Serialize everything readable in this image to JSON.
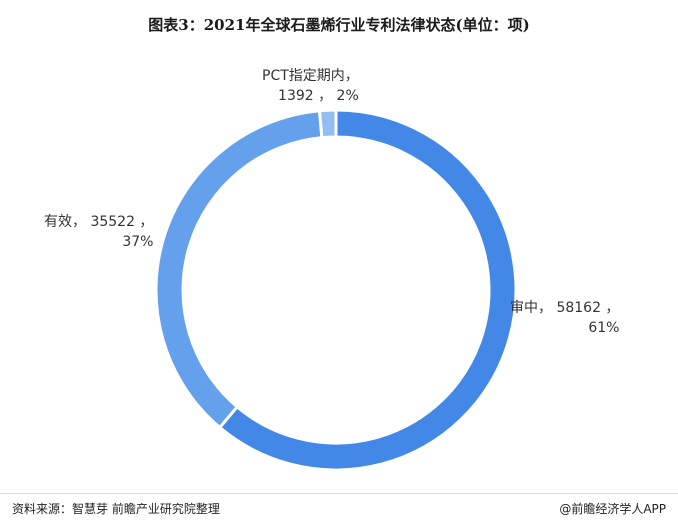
{
  "title": "图表3：2021年全球石墨烯行业专利法律状态(单位：项)",
  "chart_data": {
    "type": "pie",
    "donut": true,
    "series": [
      {
        "name": "审中",
        "value": 58162,
        "percent": "61%",
        "color": "#4388e6"
      },
      {
        "name": "有效",
        "value": 35522,
        "percent": "37%",
        "color": "#64a0ec"
      },
      {
        "name": "PCT指定期内",
        "value": 1392,
        "percent": "2%",
        "color": "#93bcf2"
      }
    ]
  },
  "labels": {
    "pending": {
      "line1": "审中， 58162 ，",
      "line2": "61%"
    },
    "valid": {
      "line1": "有效， 35522 ，",
      "line2": "37%"
    },
    "pct": {
      "line1": "PCT指定期内，",
      "line2": "1392 ， 2%"
    }
  },
  "footer": {
    "source": "资料来源：智慧芽 前瞻产业研究院整理",
    "brand": "@前瞻经济学人APP"
  }
}
